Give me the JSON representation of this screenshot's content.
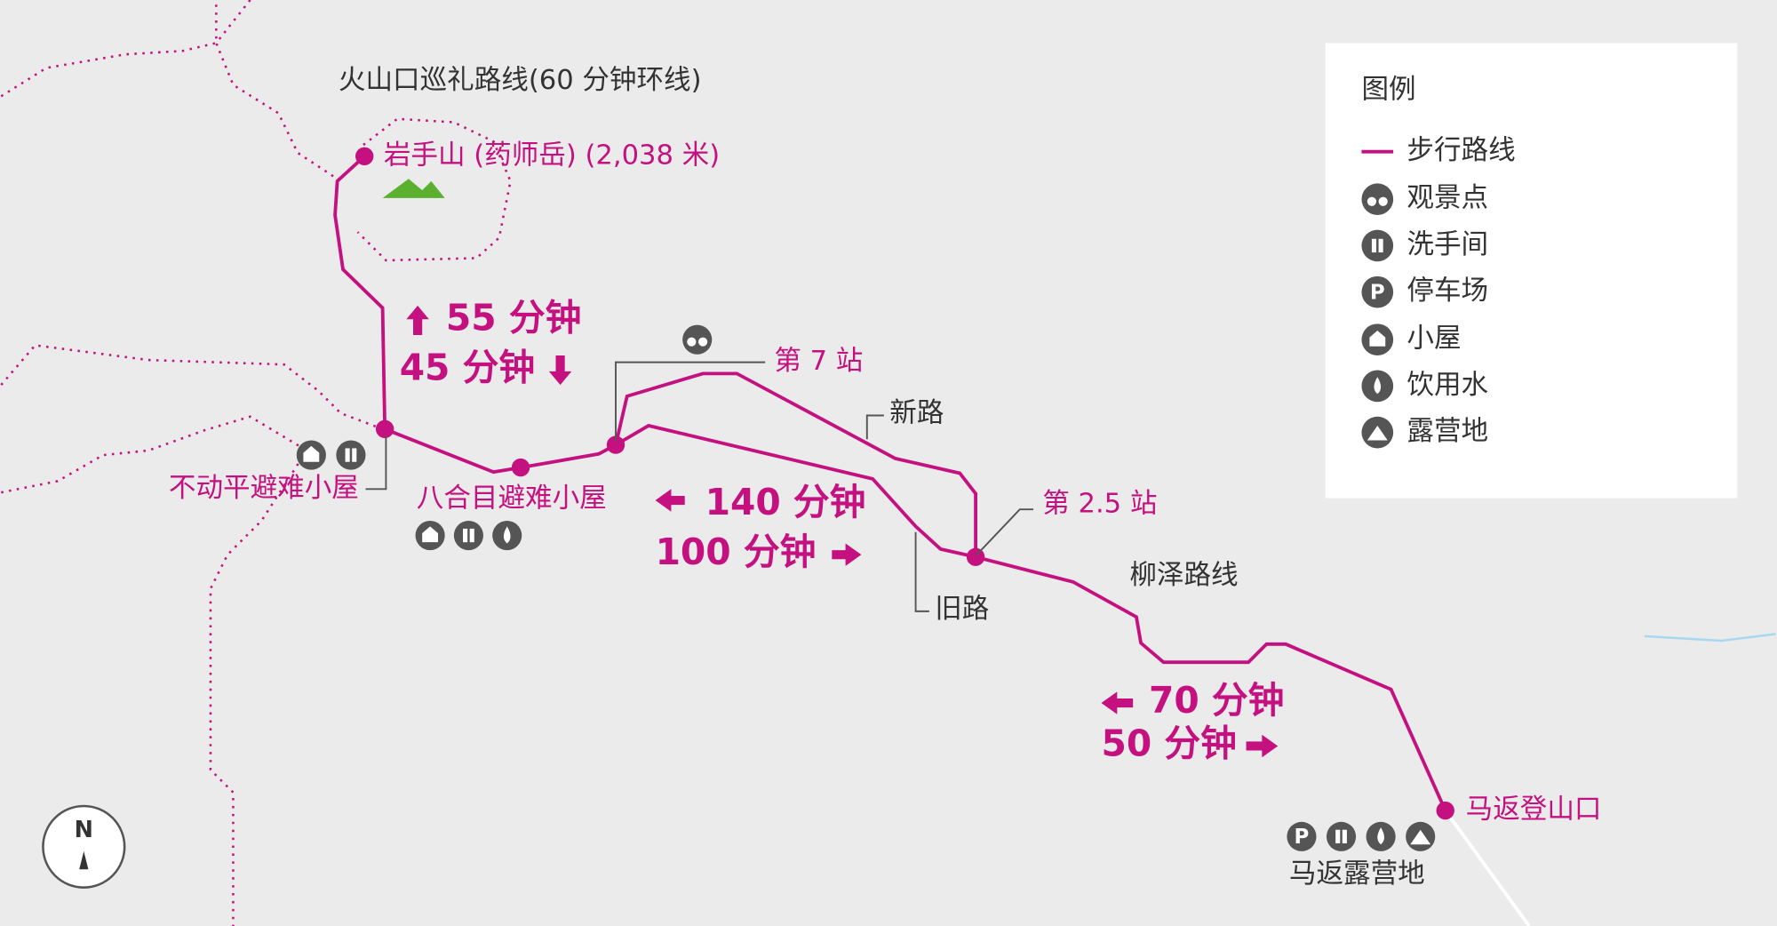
{
  "map": {
    "crater_loop": "火山口巡礼路线(60 分钟环线)",
    "summit": "岩手山 (药师岳) (2,038 米)",
    "hut1": "不动平避难小屋",
    "hut2": "八合目避难小屋",
    "station7": "第 7 站",
    "new_road": "新路",
    "old_road": "旧路",
    "station25": "第 2.5 站",
    "yanagisawa": "柳泽路线",
    "trailhead": "马返登山口",
    "campsite": "马返露营地",
    "times": [
      "55 分钟",
      "45 分钟",
      "140 分钟",
      "100 分钟",
      "70 分钟",
      "50 分钟"
    ],
    "north": "N"
  },
  "legend": {
    "title": "图例",
    "items": [
      "步行路线",
      "观景点",
      "洗手间",
      "停车场",
      "小屋",
      "饮用水",
      "露营地"
    ]
  }
}
